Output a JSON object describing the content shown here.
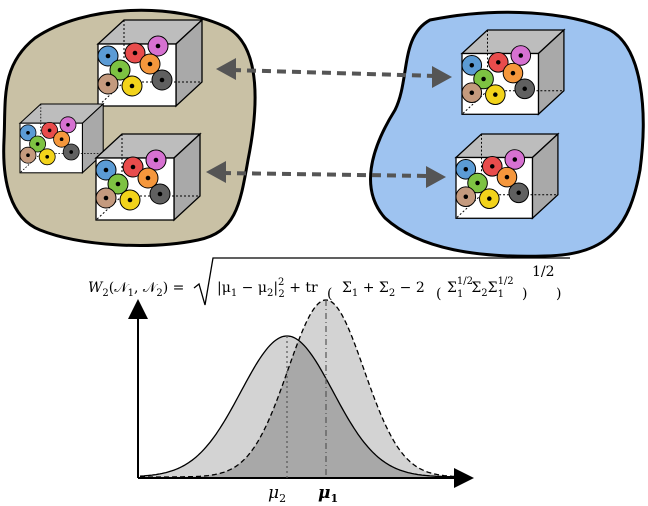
{
  "formula": {
    "lhs": "W",
    "lhs_sub": "2",
    "lhs_args": "(𝒩",
    "lhs_args_sub1": "1",
    "lhs_args_mid": ", 𝒩",
    "lhs_args_sub2": "2",
    "lhs_args_close": ") =",
    "term_norm": "|μ",
    "term_norm_sub1": "1",
    "term_norm_minus": " − μ",
    "term_norm_sub2": "2",
    "term_norm_close": "|",
    "term_norm_pow": "2",
    "term_norm_sub_idx": "2",
    "plus_tr": " + tr",
    "sigma_part": "Σ",
    "sigma_sub1": "1",
    "sigma_plus": " + Σ",
    "sigma_sub2": "2",
    "sigma_minus2": " − 2",
    "inner_sigma1": "Σ",
    "inner_sigma1_sup": "1/2",
    "inner_sigma1_sub": "1",
    "inner_sigma2": "Σ",
    "inner_sigma2_sub": "2",
    "inner_sigma3": "Σ",
    "inner_sigma3_sup": "1/2",
    "inner_sigma3_sub": "1",
    "outer_pow": "1/2"
  },
  "labels": {
    "mu2": "μ",
    "mu2_sub": "2",
    "mu1": "μ",
    "mu1_sub": "1"
  },
  "colors": {
    "blob_left": "#c9c1a5",
    "blob_right": "#9ec3f0",
    "cube_top": "#bdbdbd",
    "cube_side": "#a9a9a9",
    "curve_light": "#d3d3d3",
    "curve_overlap": "#a8a8a8",
    "arrow": "#555555",
    "dots": [
      "#5b9bd5",
      "#e84c4c",
      "#d671d1",
      "#7dc242",
      "#f5973c",
      "#c49a7e",
      "#f2d31b",
      "#606060"
    ]
  },
  "icons": [
    "dot-circle-icon",
    "arrow-icon"
  ]
}
